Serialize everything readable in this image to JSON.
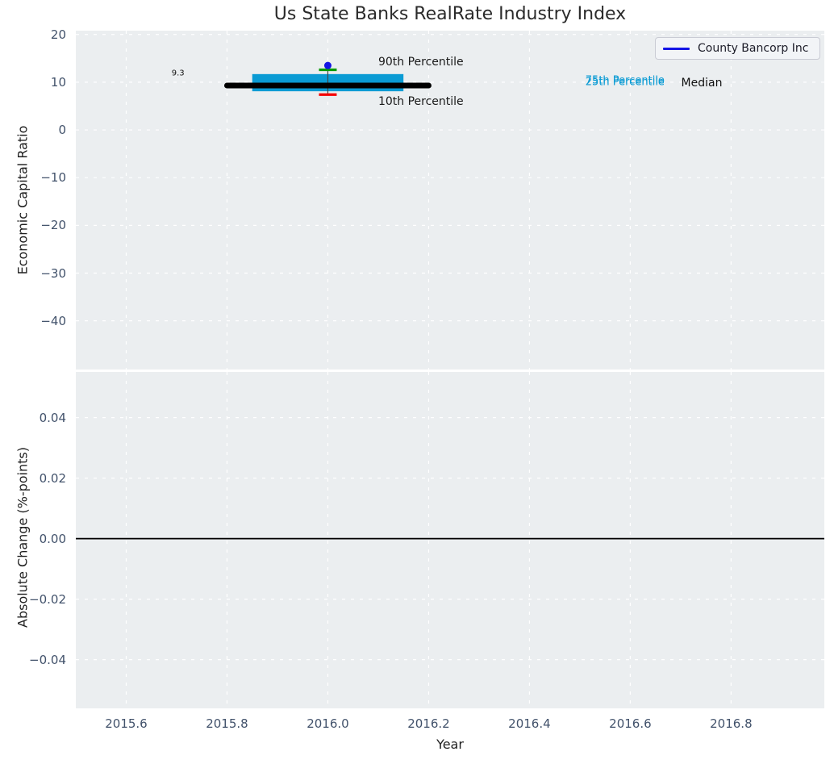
{
  "title": "Us State Banks RealRate Industry Index",
  "legend": {
    "label": "County Bancorp Inc",
    "line_color": "#1414e6"
  },
  "colors": {
    "plot_background": "#ebeef0",
    "grid": "#ffffff",
    "median_line": "#000000",
    "iqr_box": "#0a9bd4",
    "p90_cap": "#0a9a0a",
    "p10_cap": "#f50000",
    "company_point": "#1414e6",
    "whisker": "#444444",
    "zero_line": "#000000",
    "tick_label": "#42526b",
    "axis_label": "#1f1f1f",
    "title": "#2b2b2b"
  },
  "chart_data": [
    {
      "type": "scatter",
      "title": "Us State Banks RealRate Industry Index",
      "ylabel": "Economic Capital Ratio",
      "xlabel": "",
      "grid": true,
      "legend_position": "upper right",
      "xlim": [
        2015.5,
        2016.985
      ],
      "ylim": [
        -50.2,
        20.8
      ],
      "xtick_values": [
        2015.6,
        2015.8,
        2016.0,
        2016.2,
        2016.4,
        2016.6,
        2016.8
      ],
      "xtick_labels": [
        "2015.6",
        "2015.8",
        "2016.0",
        "2016.2",
        "2016.4",
        "2016.6",
        "2016.8"
      ],
      "show_xtick_labels": false,
      "ytick_values": [
        20,
        10,
        0,
        -10,
        -20,
        -30,
        -40
      ],
      "ytick_labels": [
        "20",
        "10",
        "0",
        "−10",
        "−20",
        "−30",
        "−40"
      ],
      "series": [
        {
          "name": "County Bancorp Inc",
          "x": [
            2016.0
          ],
          "y": [
            13.5
          ],
          "color": "#1414e6",
          "marker": "circle"
        }
      ],
      "industry_stats": {
        "year": 2016.0,
        "median": 9.3,
        "median_label": "9.3",
        "p75": 11.7,
        "p25": 8.1,
        "p90": 12.6,
        "p10": 7.4,
        "median_span_years": [
          2015.8,
          2016.2
        ],
        "box_span_years": [
          2015.85,
          2016.15
        ]
      },
      "annotations": [
        {
          "text": "90th Percentile",
          "x": 2016.1,
          "y": 14.2,
          "color": "#1a1a1a",
          "size": 14
        },
        {
          "text": "10th Percentile",
          "x": 2016.1,
          "y": 6.0,
          "color": "#1a1a1a",
          "size": 14
        },
        {
          "text": "9.3",
          "x": 2015.69,
          "y": 11.9,
          "color": "#111111",
          "size": 10
        },
        {
          "text": "75th Percentile",
          "x": 2016.511,
          "y": 10.3,
          "color": "#0a9bd4",
          "size": 13
        },
        {
          "text": "25th Percentile",
          "x": 2016.511,
          "y": 9.95,
          "color": "#0a9bd4",
          "size": 13
        },
        {
          "text": "Median",
          "x": 2016.701,
          "y": 9.85,
          "color": "#111111",
          "size": 14
        }
      ]
    },
    {
      "type": "line",
      "ylabel": "Absolute Change (%-points)",
      "xlabel": "Year",
      "grid": true,
      "xlim": [
        2015.5,
        2016.985
      ],
      "ylim": [
        -0.0561,
        0.0551
      ],
      "xtick_values": [
        2015.6,
        2015.8,
        2016.0,
        2016.2,
        2016.4,
        2016.6,
        2016.8
      ],
      "xtick_labels": [
        "2015.6",
        "2015.8",
        "2016.0",
        "2016.2",
        "2016.4",
        "2016.6",
        "2016.8"
      ],
      "show_xtick_labels": true,
      "ytick_values": [
        0.04,
        0.02,
        0.0,
        -0.02,
        -0.04
      ],
      "ytick_labels": [
        "0.04",
        "0.02",
        "0.00",
        "−0.02",
        "−0.04"
      ],
      "zero_line": 0.0,
      "series": []
    }
  ]
}
